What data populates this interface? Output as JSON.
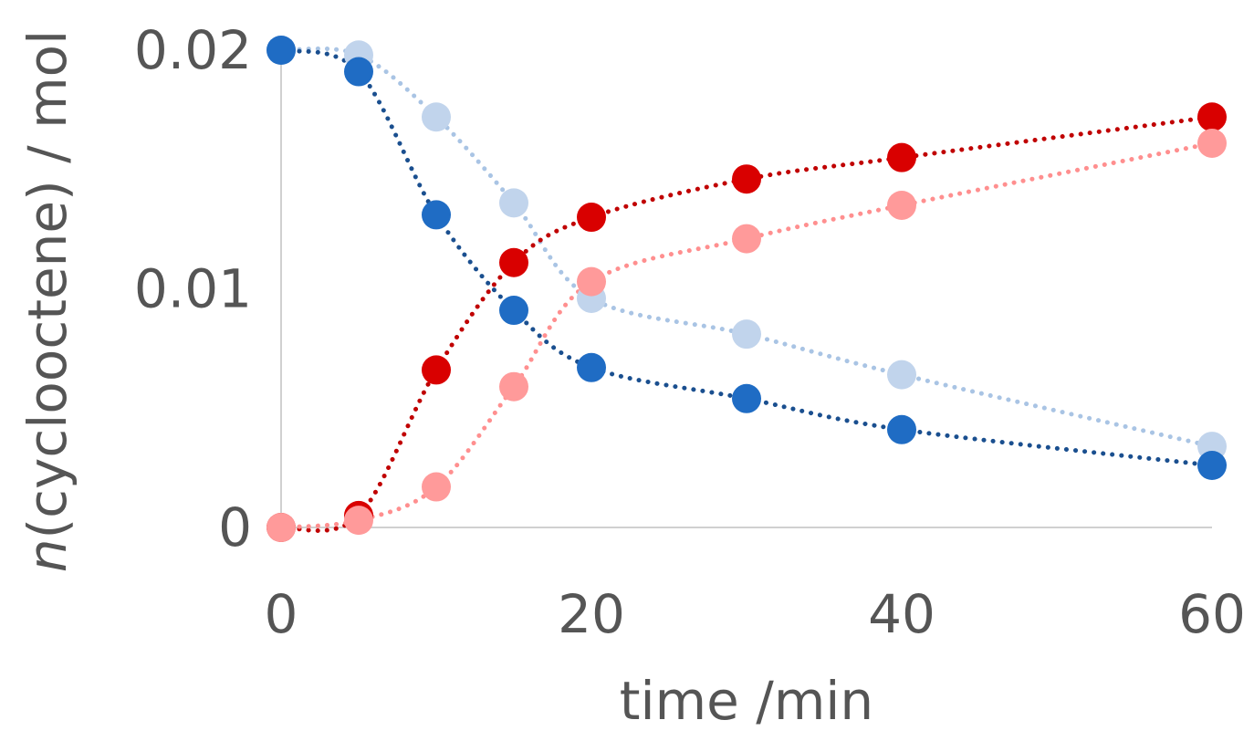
{
  "chart_data": {
    "type": "scatter",
    "title": "",
    "xlabel": "time /min",
    "ylabel_italic": "n",
    "ylabel_rest": "(cyclooctene) / mol",
    "xlim": [
      0,
      60
    ],
    "ylim": [
      0,
      0.02
    ],
    "x_ticks": [
      0,
      20,
      40,
      60
    ],
    "x_tick_labels": [
      "0",
      "20",
      "40",
      "60"
    ],
    "y_ticks": [
      0,
      0.01,
      0.02
    ],
    "y_tick_labels": [
      "0",
      "0.01",
      "0.02"
    ],
    "grid": false,
    "legend": "none",
    "series": [
      {
        "color": "#c1d4ec",
        "line_color": "#a9c4e4",
        "x": [
          0,
          5,
          10,
          15,
          20,
          30,
          40,
          60
        ],
        "y": [
          0.02,
          0.0198,
          0.0172,
          0.0136,
          0.0096,
          0.0081,
          0.0064,
          0.0034
        ]
      },
      {
        "color": "#1f6cc4",
        "line_color": "#1a4f8f",
        "x": [
          0,
          5,
          10,
          15,
          20,
          30,
          40,
          60
        ],
        "y": [
          0.02,
          0.0191,
          0.0131,
          0.0091,
          0.0067,
          0.0054,
          0.0041,
          0.0026
        ]
      },
      {
        "color": "#d90000",
        "line_color": "#c00000",
        "x": [
          0,
          5,
          10,
          15,
          20,
          30,
          40,
          60
        ],
        "y": [
          0,
          0.0005,
          0.0066,
          0.0111,
          0.013,
          0.0146,
          0.0155,
          0.0172
        ]
      },
      {
        "color": "#ff9a9a",
        "line_color": "#ff8f8f",
        "x": [
          0,
          5,
          10,
          15,
          20,
          30,
          40,
          60
        ],
        "y": [
          0,
          0.0003,
          0.0017,
          0.0059,
          0.0103,
          0.0121,
          0.0135,
          0.0161
        ]
      }
    ]
  }
}
